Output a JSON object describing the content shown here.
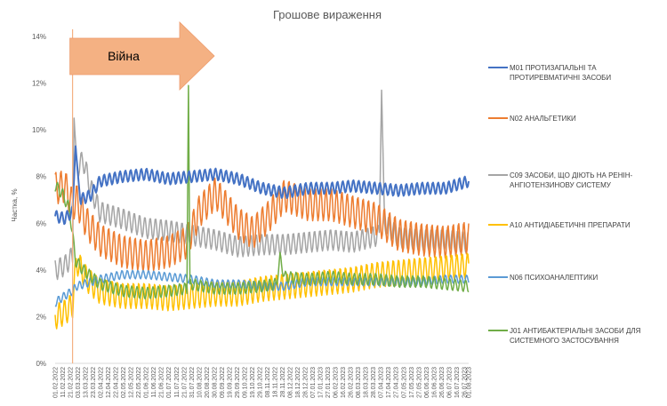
{
  "chart_data": {
    "type": "line",
    "title": "Грошове вираження",
    "ylabel": "Частка, %",
    "xlabel": "",
    "ylim": [
      0,
      14
    ],
    "yticks": [
      "0%",
      "2%",
      "4%",
      "6%",
      "8%",
      "10%",
      "12%",
      "14%"
    ],
    "grid": false,
    "legend_position": "right",
    "annotation": {
      "label": "Війна",
      "date": "24.02.2022"
    },
    "x_tick_labels": [
      "01.02.2022",
      "11.02.2022",
      "21.02.2022",
      "03.03.2022",
      "13.03.2022",
      "23.03.2022",
      "02.04.2022",
      "12.04.2022",
      "22.04.2022",
      "02.05.2022",
      "12.05.2022",
      "22.05.2022",
      "01.06.2022",
      "11.06.2022",
      "21.06.2022",
      "01.07.2022",
      "11.07.2022",
      "21.07.2022",
      "31.07.2022",
      "10.08.2022",
      "20.08.2022",
      "30.08.2022",
      "09.09.2022",
      "19.09.2022",
      "29.09.2022",
      "09.10.2022",
      "19.10.2022",
      "29.10.2022",
      "08.11.2022",
      "18.11.2022",
      "28.11.2022",
      "08.12.2022",
      "18.12.2022",
      "28.12.2022",
      "07.01.2023",
      "17.01.2023",
      "27.01.2023",
      "06.02.2023",
      "16.02.2023",
      "26.02.2023",
      "08.03.2023",
      "18.03.2023",
      "28.03.2023",
      "07.04.2023",
      "17.04.2023",
      "27.04.2023",
      "07.05.2023",
      "17.05.2023",
      "27.05.2023",
      "06.06.2023",
      "16.06.2023",
      "26.06.2023",
      "06.07.2023",
      "16.07.2023",
      "26.07.2023",
      "01.08.2023"
    ],
    "series": [
      {
        "name": "M01 ПРОТИЗАПАЛЬНІ ТА ПРОТИРЕВМАТИЧНІ ЗАСОБИ",
        "color": "#4472C4",
        "amp": 0.25,
        "points": [
          [
            "01.02.2022",
            6.3
          ],
          [
            "14.02.2022",
            6.2
          ],
          [
            "24.02.2022",
            6.5
          ],
          [
            "28.02.2022",
            9.3
          ],
          [
            "06.03.2022",
            7.0
          ],
          [
            "20.03.2022",
            7.2
          ],
          [
            "01.04.2022",
            7.8
          ],
          [
            "01.05.2022",
            8.0
          ],
          [
            "01.06.2022",
            8.1
          ],
          [
            "01.07.2022",
            7.9
          ],
          [
            "01.08.2022",
            8.0
          ],
          [
            "01.09.2022",
            8.1
          ],
          [
            "01.10.2022",
            7.9
          ],
          [
            "01.11.2022",
            7.5
          ],
          [
            "01.12.2022",
            7.3
          ],
          [
            "01.01.2023",
            7.5
          ],
          [
            "01.02.2023",
            7.5
          ],
          [
            "01.03.2023",
            7.6
          ],
          [
            "01.04.2023",
            7.5
          ],
          [
            "01.05.2023",
            7.4
          ],
          [
            "01.06.2023",
            7.5
          ],
          [
            "01.07.2023",
            7.5
          ],
          [
            "01.08.2023",
            7.8
          ]
        ]
      },
      {
        "name": "N02 АНАЛЬГЕТИКИ",
        "color": "#ED7D31",
        "amp": 0.7,
        "points": [
          [
            "01.02.2022",
            7.5
          ],
          [
            "14.02.2022",
            7.6
          ],
          [
            "24.02.2022",
            6.8
          ],
          [
            "01.03.2022",
            7.0
          ],
          [
            "15.03.2022",
            6.0
          ],
          [
            "01.04.2022",
            5.3
          ],
          [
            "01.05.2022",
            4.8
          ],
          [
            "01.06.2022",
            4.6
          ],
          [
            "01.07.2022",
            4.8
          ],
          [
            "25.07.2022",
            5.2
          ],
          [
            "10.08.2022",
            6.5
          ],
          [
            "01.09.2022",
            7.3
          ],
          [
            "01.10.2022",
            6.0
          ],
          [
            "20.10.2022",
            5.6
          ],
          [
            "10.11.2022",
            6.3
          ],
          [
            "01.12.2022",
            7.2
          ],
          [
            "01.01.2023",
            6.8
          ],
          [
            "01.02.2023",
            6.8
          ],
          [
            "01.03.2023",
            6.5
          ],
          [
            "01.04.2023",
            6.2
          ],
          [
            "01.05.2023",
            5.5
          ],
          [
            "01.06.2023",
            5.3
          ],
          [
            "01.07.2023",
            5.2
          ],
          [
            "01.08.2023",
            5.4
          ]
        ]
      },
      {
        "name": "C09 ЗАСОБИ, ЩО ДІЮТЬ НА РЕНІН-АНГІОТЕНЗИНОВУ СИСТЕМУ",
        "color": "#A5A5A5",
        "amp": 0.45,
        "points": [
          [
            "01.02.2022",
            4.0
          ],
          [
            "14.02.2022",
            4.2
          ],
          [
            "24.02.2022",
            4.6
          ],
          [
            "26.02.2022",
            10.5
          ],
          [
            "02.03.2022",
            8.4
          ],
          [
            "10.03.2022",
            8.7
          ],
          [
            "20.03.2022",
            7.5
          ],
          [
            "01.04.2022",
            6.5
          ],
          [
            "01.05.2022",
            6.2
          ],
          [
            "01.06.2022",
            5.8
          ],
          [
            "01.07.2022",
            5.7
          ],
          [
            "01.08.2022",
            5.5
          ],
          [
            "01.09.2022",
            5.3
          ],
          [
            "01.10.2022",
            5.0
          ],
          [
            "01.11.2022",
            5.1
          ],
          [
            "01.12.2022",
            5.1
          ],
          [
            "01.01.2023",
            5.2
          ],
          [
            "01.02.2023",
            5.3
          ],
          [
            "01.03.2023",
            5.2
          ],
          [
            "05.04.2023",
            5.5
          ],
          [
            "08.04.2023",
            11.7
          ],
          [
            "12.04.2023",
            6.0
          ],
          [
            "01.05.2023",
            5.4
          ],
          [
            "01.06.2023",
            5.3
          ],
          [
            "01.07.2023",
            5.3
          ],
          [
            "01.08.2023",
            5.2
          ]
        ]
      },
      {
        "name": "A10 АНТИДІАБЕТИЧНІ ПРЕПАРАТИ",
        "color": "#FFC000",
        "amp": 0.55,
        "points": [
          [
            "01.02.2022",
            2.0
          ],
          [
            "14.02.2022",
            2.2
          ],
          [
            "24.02.2022",
            2.5
          ],
          [
            "01.03.2022",
            4.4
          ],
          [
            "15.03.2022",
            3.6
          ],
          [
            "01.04.2022",
            3.1
          ],
          [
            "01.05.2022",
            2.9
          ],
          [
            "01.06.2022",
            2.9
          ],
          [
            "01.07.2022",
            2.8
          ],
          [
            "01.08.2022",
            2.9
          ],
          [
            "01.09.2022",
            3.0
          ],
          [
            "01.10.2022",
            3.0
          ],
          [
            "01.11.2022",
            3.2
          ],
          [
            "01.12.2022",
            3.3
          ],
          [
            "01.01.2023",
            3.4
          ],
          [
            "01.02.2023",
            3.5
          ],
          [
            "01.03.2023",
            3.6
          ],
          [
            "01.04.2023",
            3.8
          ],
          [
            "01.05.2023",
            3.9
          ],
          [
            "01.06.2023",
            4.0
          ],
          [
            "01.07.2023",
            4.1
          ],
          [
            "01.08.2023",
            4.2
          ]
        ]
      },
      {
        "name": "N06 ПСИХОАНАЛЕПТИКИ",
        "color": "#5B9BD5",
        "amp": 0.18,
        "points": [
          [
            "01.02.2022",
            2.6
          ],
          [
            "14.02.2022",
            2.9
          ],
          [
            "24.02.2022",
            3.1
          ],
          [
            "01.03.2022",
            3.3
          ],
          [
            "01.04.2022",
            3.6
          ],
          [
            "01.05.2022",
            3.8
          ],
          [
            "01.06.2022",
            3.8
          ],
          [
            "01.07.2022",
            3.7
          ],
          [
            "01.08.2022",
            3.6
          ],
          [
            "01.09.2022",
            3.4
          ],
          [
            "01.10.2022",
            3.4
          ],
          [
            "01.11.2022",
            3.3
          ],
          [
            "01.12.2022",
            3.3
          ],
          [
            "01.01.2023",
            3.5
          ],
          [
            "01.02.2023",
            3.5
          ],
          [
            "01.03.2023",
            3.5
          ],
          [
            "01.04.2023",
            3.5
          ],
          [
            "01.05.2023",
            3.5
          ],
          [
            "01.06.2023",
            3.5
          ],
          [
            "01.07.2023",
            3.6
          ],
          [
            "01.08.2023",
            3.6
          ]
        ]
      },
      {
        "name": "J01 АНТИБАКТЕРІАЛЬНІ ЗАСОБИ ДЛЯ СИСТЕМНОГО ЗАСТОСУВАННЯ",
        "color": "#70AD47",
        "amp": 0.25,
        "points": [
          [
            "01.02.2022",
            7.6
          ],
          [
            "10.02.2022",
            7.3
          ],
          [
            "20.02.2022",
            6.6
          ],
          [
            "28.02.2022",
            4.4
          ],
          [
            "10.03.2022",
            4.0
          ],
          [
            "01.04.2022",
            3.4
          ],
          [
            "01.05.2022",
            3.1
          ],
          [
            "01.06.2022",
            3.0
          ],
          [
            "01.07.2022",
            3.1
          ],
          [
            "25.07.2022",
            3.2
          ],
          [
            "27.07.2022",
            11.9
          ],
          [
            "29.07.2022",
            3.4
          ],
          [
            "01.09.2022",
            3.2
          ],
          [
            "01.10.2022",
            3.2
          ],
          [
            "01.11.2022",
            3.3
          ],
          [
            "20.11.2022",
            3.4
          ],
          [
            "25.11.2022",
            4.5
          ],
          [
            "01.12.2022",
            3.7
          ],
          [
            "01.01.2023",
            3.6
          ],
          [
            "01.02.2023",
            3.7
          ],
          [
            "01.03.2023",
            3.6
          ],
          [
            "01.04.2023",
            3.6
          ],
          [
            "01.05.2023",
            3.5
          ],
          [
            "01.06.2023",
            3.5
          ],
          [
            "01.07.2023",
            3.4
          ],
          [
            "01.08.2023",
            3.3
          ]
        ]
      }
    ]
  }
}
